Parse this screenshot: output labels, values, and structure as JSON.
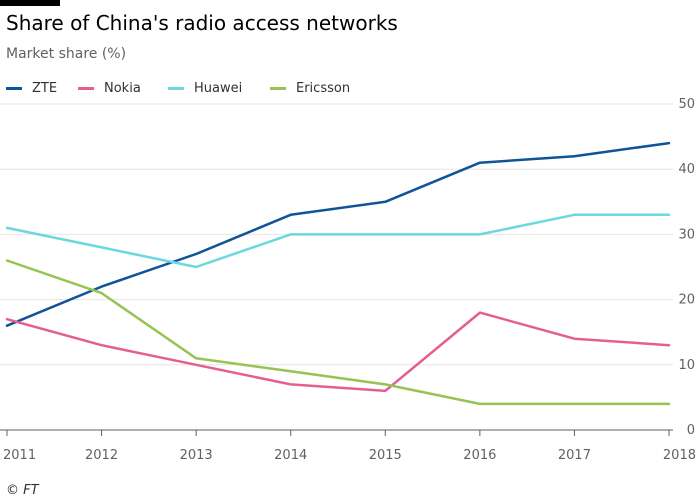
{
  "title": "Share of China's radio access networks",
  "subtitle": "Market share (%)",
  "source": "© FT",
  "chart_data": {
    "type": "line",
    "x": [
      "2011",
      "2012",
      "2013",
      "2014",
      "2015",
      "2016",
      "2017",
      "2018"
    ],
    "ylim": [
      0,
      50
    ],
    "yticks": [
      0,
      10,
      20,
      30,
      40,
      50
    ],
    "y_axis_side": "right",
    "grid": true,
    "legend_position": "top-left",
    "series": [
      {
        "name": "ZTE",
        "color": "#0f5499",
        "values": [
          16,
          22,
          27,
          33,
          35,
          41,
          42,
          44
        ]
      },
      {
        "name": "Nokia",
        "color": "#e55e8f",
        "values": [
          17,
          13,
          10,
          7,
          6,
          18,
          14,
          13
        ]
      },
      {
        "name": "Huawei",
        "color": "#6bd8e0",
        "values": [
          31,
          28,
          25,
          30,
          30,
          30,
          33,
          33
        ]
      },
      {
        "name": "Ericsson",
        "color": "#96c452",
        "values": [
          26,
          21,
          11,
          9,
          7,
          4,
          4,
          4
        ]
      }
    ]
  }
}
